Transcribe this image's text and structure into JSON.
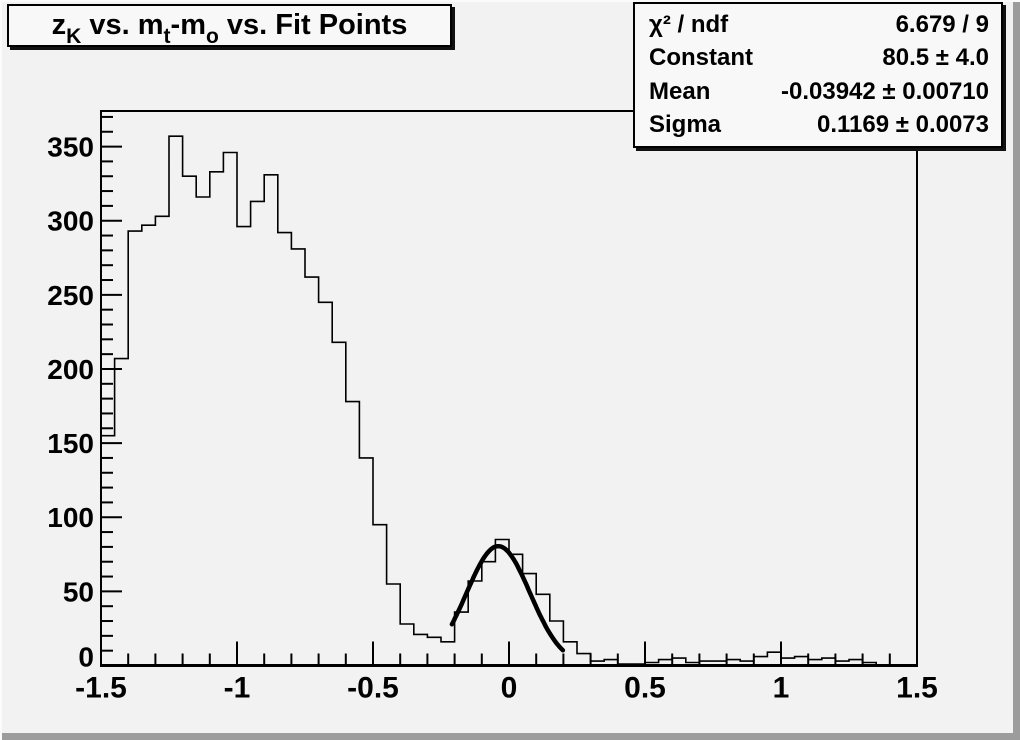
{
  "canvas": {
    "background": "#f2f2f2",
    "edge_dark": "#9c9c9c",
    "edge_light": "#fbfbfb"
  },
  "title_box": {
    "segments": [
      {
        "text": "z",
        "sub": "K"
      },
      {
        "text": " vs. m",
        "sub": "t"
      },
      {
        "text": "-m",
        "sub": "o"
      },
      {
        "text": " vs. Fit Points",
        "sub": ""
      }
    ]
  },
  "stats_box": {
    "rows": [
      {
        "label": "χ² / ndf",
        "value": "6.679 / 9"
      },
      {
        "label": "Constant",
        "value": "80.5 ± 4.0"
      },
      {
        "label": "Mean",
        "value": "-0.03942 ± 0.00710"
      },
      {
        "label": "Sigma",
        "value": "0.1169 ± 0.0073"
      }
    ]
  },
  "chart_data": {
    "type": "bar",
    "style": "step-histogram",
    "title": "z_K vs. m_t-m_o vs. Fit Points",
    "xlabel": "",
    "ylabel": "",
    "xlim": [
      -1.5,
      1.5
    ],
    "ylim": [
      0,
      374
    ],
    "grid": false,
    "bin_start": -1.5,
    "bin_width": 0.05,
    "values": [
      155,
      207,
      293,
      297,
      303,
      357,
      330,
      316,
      333,
      346,
      296,
      313,
      331,
      292,
      281,
      262,
      245,
      218,
      178,
      140,
      95,
      55,
      28,
      21,
      19,
      16,
      36,
      57,
      70,
      85,
      75,
      62,
      48,
      30,
      16,
      8,
      3,
      4,
      1,
      1,
      2,
      4,
      5,
      2,
      3,
      3,
      4,
      3,
      6,
      9,
      5,
      6,
      4,
      5,
      3,
      4,
      2,
      0,
      0,
      0
    ],
    "x_major_ticks": [
      -1.5,
      -1,
      -0.5,
      0,
      0.5,
      1,
      1.5
    ],
    "x_tick_labels": [
      "-1.5",
      "-1",
      "-0.5",
      "0",
      "0.5",
      "1",
      "1.5"
    ],
    "x_minor_step": 0.1,
    "y_major_ticks": [
      0,
      50,
      100,
      150,
      200,
      250,
      300,
      350
    ],
    "y_tick_labels": [
      "0",
      "50",
      "100",
      "150",
      "200",
      "250",
      "300",
      "350"
    ],
    "y_minor_step": 10,
    "line_color": "#000000",
    "fit": {
      "type": "gaussian",
      "constant": 80.5,
      "mean": -0.03942,
      "sigma": 0.1169,
      "range": [
        -0.21,
        0.2
      ],
      "color": "#000000"
    }
  }
}
